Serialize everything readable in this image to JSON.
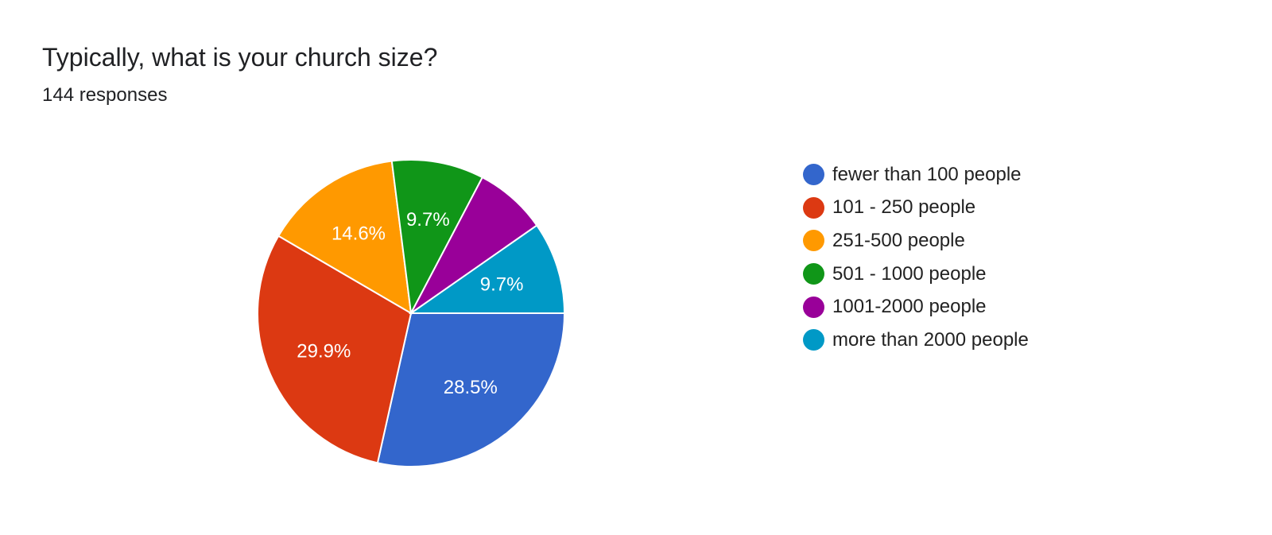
{
  "header": {
    "title": "Typically, what is your church size?",
    "subtitle": "144 responses"
  },
  "chart_data": {
    "type": "pie",
    "title": "Typically, what is your church size?",
    "subtitle": "144 responses",
    "total_responses": 144,
    "legend_position": "right",
    "slices": [
      {
        "label": "fewer than 100 people",
        "value": 28.5,
        "display": "28.5%",
        "color": "#3366cc"
      },
      {
        "label": "101 - 250 people",
        "value": 29.9,
        "display": "29.9%",
        "color": "#dc3912"
      },
      {
        "label": "251-500 people",
        "value": 14.6,
        "display": "14.6%",
        "color": "#ff9900"
      },
      {
        "label": "501 - 1000 people",
        "value": 9.7,
        "display": "9.7%",
        "color": "#109618"
      },
      {
        "label": "1001-2000 people",
        "value": 7.6,
        "display": "",
        "color": "#990099"
      },
      {
        "label": "more than 2000 people",
        "value": 9.7,
        "display": "9.7%",
        "color": "#0099c6"
      }
    ]
  }
}
